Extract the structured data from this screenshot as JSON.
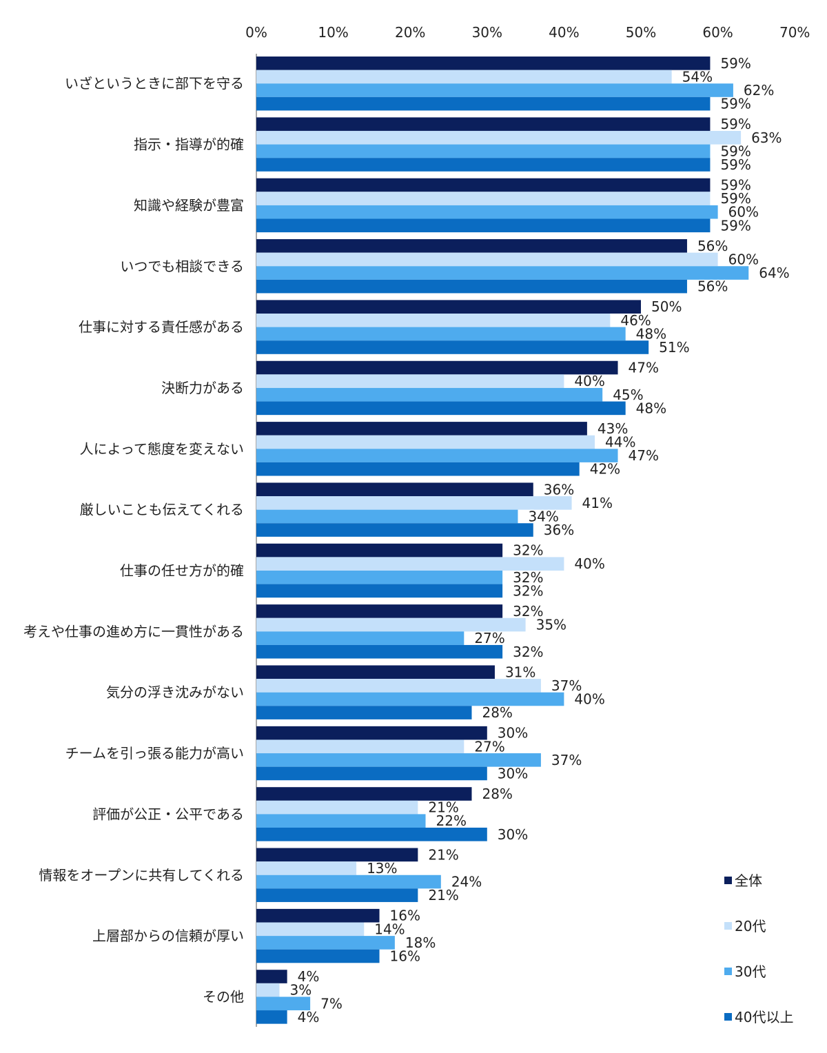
{
  "chart_data": {
    "type": "bar",
    "orientation": "horizontal",
    "xlim": [
      0,
      70
    ],
    "x_ticks": [
      "0%",
      "10%",
      "20%",
      "30%",
      "40%",
      "50%",
      "60%",
      "70%"
    ],
    "x_tick_values": [
      0,
      10,
      20,
      30,
      40,
      50,
      60,
      70
    ],
    "unit": "%",
    "grid": false,
    "legend_position": "bottom-right",
    "categories": [
      "いざというときに部下を守る",
      "指示・指導が的確",
      "知識や経験が豊富",
      "いつでも相談できる",
      "仕事に対する責任感がある",
      "決断力がある",
      "人によって態度を変えない",
      "厳しいことも伝えてくれる",
      "仕事の任せ方が的確",
      "考えや仕事の進め方に一貫性がある",
      "気分の浮き沈みがない",
      "チームを引っ張る能力が高い",
      "評価が公正・公平である",
      "情報をオープンに共有してくれる",
      "上層部からの信頼が厚い",
      "その他"
    ],
    "series": [
      {
        "name": "全体",
        "color": "#0b1f5c",
        "values": [
          59,
          59,
          59,
          56,
          50,
          47,
          43,
          36,
          32,
          32,
          31,
          30,
          28,
          21,
          16,
          4
        ]
      },
      {
        "name": "20代",
        "color": "#c4e0fa",
        "values": [
          54,
          63,
          59,
          60,
          46,
          40,
          44,
          41,
          40,
          35,
          37,
          27,
          21,
          13,
          14,
          3
        ]
      },
      {
        "name": "30代",
        "color": "#4eabee",
        "values": [
          62,
          59,
          60,
          64,
          48,
          45,
          47,
          34,
          32,
          27,
          40,
          37,
          22,
          24,
          18,
          7
        ]
      },
      {
        "name": "40代以上",
        "color": "#0a6cc2",
        "values": [
          59,
          59,
          59,
          56,
          51,
          48,
          42,
          36,
          32,
          32,
          28,
          30,
          30,
          21,
          16,
          4
        ]
      }
    ]
  }
}
